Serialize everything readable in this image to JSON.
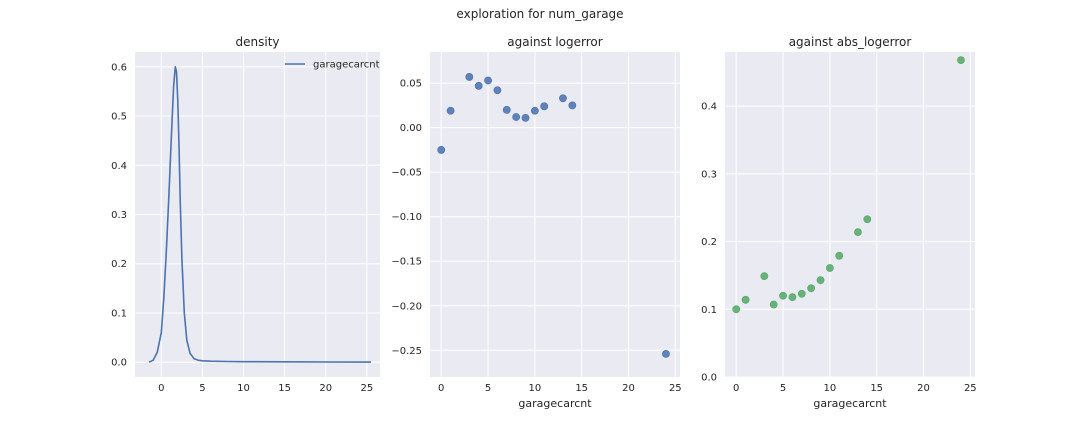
{
  "figure": {
    "suptitle": "exploration for num_garage",
    "style": {
      "axes_bg": "#eaeaf2",
      "grid_color": "#ffffff",
      "text_color": "#262626"
    }
  },
  "chart_data": [
    {
      "type": "line",
      "title": "density",
      "xlabel": "",
      "ylabel": "",
      "xlim": [
        -3.2,
        26.6
      ],
      "ylim": [
        -0.03,
        0.63
      ],
      "xticks": [
        0,
        5,
        10,
        15,
        20,
        25
      ],
      "yticks": [
        0.0,
        0.1,
        0.2,
        0.3,
        0.4,
        0.5,
        0.6
      ],
      "ytick_labels": [
        "0.0",
        "0.1",
        "0.2",
        "0.3",
        "0.4",
        "0.5",
        "0.6"
      ],
      "grid": true,
      "legend": {
        "placement": "top-right",
        "entries": [
          "garagecarcnt"
        ]
      },
      "series": [
        {
          "name": "garagecarcnt",
          "color": "#4c72b0",
          "x": [
            -1.5,
            -1.0,
            -0.5,
            0.0,
            0.3,
            0.6,
            0.9,
            1.2,
            1.5,
            1.7,
            1.85,
            2.0,
            2.15,
            2.3,
            2.5,
            2.8,
            3.1,
            3.5,
            4.0,
            4.5,
            5.0,
            6.0,
            8.0,
            10.0,
            15.0,
            20.0,
            25.5
          ],
          "y": [
            0.0,
            0.004,
            0.02,
            0.06,
            0.13,
            0.22,
            0.33,
            0.45,
            0.56,
            0.6,
            0.59,
            0.53,
            0.44,
            0.33,
            0.21,
            0.1,
            0.045,
            0.018,
            0.007,
            0.004,
            0.003,
            0.002,
            0.0015,
            0.001,
            0.0008,
            0.0005,
            0.0003
          ]
        }
      ]
    },
    {
      "type": "scatter",
      "title": "against logerror",
      "xlabel": "garagecarcnt",
      "ylabel": "",
      "xlim": [
        -1.2,
        25.5
      ],
      "ylim": [
        -0.28,
        0.085
      ],
      "xticks": [
        0,
        5,
        10,
        15,
        20,
        25
      ],
      "yticks": [
        0.05,
        0.0,
        -0.05,
        -0.1,
        -0.15,
        -0.2,
        -0.25
      ],
      "ytick_labels": [
        "0.05",
        "0.00",
        "−0.05",
        "−0.10",
        "−0.15",
        "−0.20",
        "−0.25"
      ],
      "grid": true,
      "series": [
        {
          "color": "#4c72b0",
          "x": [
            0,
            1,
            3,
            4,
            5,
            6,
            7,
            8,
            9,
            10,
            11,
            13,
            14,
            24
          ],
          "y": [
            -0.025,
            0.019,
            0.057,
            0.047,
            0.053,
            0.042,
            0.02,
            0.012,
            0.011,
            0.019,
            0.024,
            0.033,
            0.025,
            -0.254
          ]
        }
      ]
    },
    {
      "type": "scatter",
      "title": "against abs_logerror",
      "xlabel": "garagecarcnt",
      "ylabel": "",
      "xlim": [
        -1.2,
        25.5
      ],
      "ylim": [
        0.0,
        0.48
      ],
      "xticks": [
        0,
        5,
        10,
        15,
        20,
        25
      ],
      "yticks": [
        0.0,
        0.1,
        0.2,
        0.3,
        0.4
      ],
      "ytick_labels": [
        "0.0",
        "0.1",
        "0.2",
        "0.3",
        "0.4"
      ],
      "grid": true,
      "series": [
        {
          "color": "#55a868",
          "x": [
            0,
            1,
            3,
            4,
            5,
            6,
            7,
            8,
            9,
            10,
            11,
            13,
            14,
            24
          ],
          "y": [
            0.1,
            0.114,
            0.149,
            0.107,
            0.12,
            0.118,
            0.123,
            0.131,
            0.143,
            0.161,
            0.179,
            0.214,
            0.233,
            0.468
          ]
        }
      ]
    }
  ]
}
